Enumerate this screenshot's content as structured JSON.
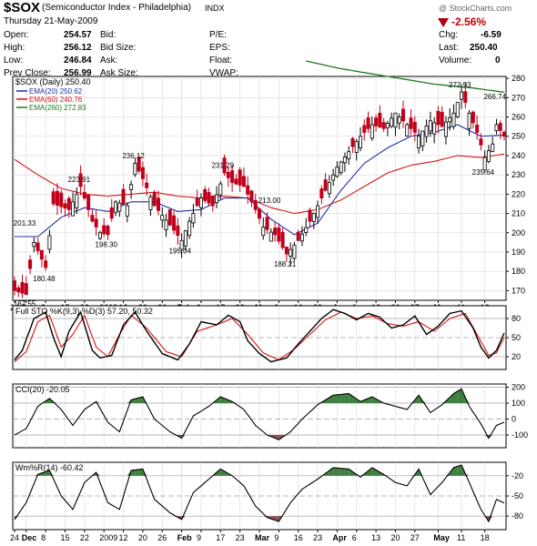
{
  "header": {
    "symbol": "$SOX",
    "name": "(Semiconductor Index - Philadelphia)",
    "exchange": "INDX",
    "date": "Thursday  21-May-2009",
    "watermark": "@ StockCharts.com",
    "quote_left": [
      {
        "label": "Open:",
        "value": "254.57"
      },
      {
        "label": "High:",
        "value": "256.12"
      },
      {
        "label": "Low:",
        "value": "246.84"
      },
      {
        "label": "Prev Close:",
        "value": "256.99"
      }
    ],
    "quote_mid": [
      "Bid:",
      "Bid Size:",
      "Ask:",
      "Ask Size:"
    ],
    "quote_mid2": [
      "P/E:",
      "EPS:",
      "Float:",
      "VWAP:"
    ],
    "change_pct": "-2.56%",
    "quote_right": [
      {
        "label": "Chg:",
        "value": "-6.59"
      },
      {
        "label": "Last:",
        "value": "250.40"
      },
      {
        "label": "Volume:",
        "value": "0"
      }
    ]
  },
  "chart_data": [
    {
      "type": "candlestick",
      "title": "$SOX (Daily) 250.40",
      "ylim": [
        165,
        281
      ],
      "yticks": [
        170,
        180,
        190,
        200,
        210,
        220,
        230,
        240,
        250,
        260,
        270,
        280
      ],
      "xlabels": [
        "24",
        "Dec",
        "8",
        "15",
        "22",
        "2009",
        "12",
        "20",
        "26",
        "Feb",
        "9",
        "17",
        "23",
        "Mar",
        "9",
        "16",
        "23",
        "Apr",
        "6",
        "13",
        "20",
        "27",
        "May",
        "11",
        "18"
      ],
      "legend": [
        {
          "name": "EMA(20) 250.62",
          "color": "#1c2fa8"
        },
        {
          "name": "EMA(60) 240.76",
          "color": "#d81414"
        },
        {
          "name": "EMA(260) 272.83",
          "color": "#1d7a1d"
        }
      ],
      "annotations": [
        {
          "label": "167.55",
          "x": 3,
          "y": 167.55
        },
        {
          "label": "180.48",
          "x": 8,
          "y": 180.48
        },
        {
          "label": "201.33",
          "x": 3,
          "y": 201.33
        },
        {
          "label": "223.91",
          "x": 17,
          "y": 223.91
        },
        {
          "label": "198.30",
          "x": 24,
          "y": 198.3
        },
        {
          "label": "236.12",
          "x": 31,
          "y": 236.12
        },
        {
          "label": "195.04",
          "x": 43,
          "y": 195.04
        },
        {
          "label": "231.29",
          "x": 54,
          "y": 231.29
        },
        {
          "label": "213.00",
          "x": 66,
          "y": 213.0
        },
        {
          "label": "188.21",
          "x": 70,
          "y": 188.21
        },
        {
          "label": "272.93",
          "x": 115,
          "y": 272.93
        },
        {
          "label": "235.64",
          "x": 121,
          "y": 235.64
        },
        {
          "label": "266.74",
          "x": 124,
          "y": 266.74
        }
      ],
      "ohlc_anchors": [
        [
          0,
          170
        ],
        [
          3,
          168
        ],
        [
          5,
          195
        ],
        [
          8,
          182
        ],
        [
          10,
          215
        ],
        [
          14,
          212
        ],
        [
          17,
          224
        ],
        [
          20,
          206
        ],
        [
          22,
          200
        ],
        [
          24,
          199
        ],
        [
          26,
          216
        ],
        [
          29,
          214
        ],
        [
          31,
          236
        ],
        [
          33,
          228
        ],
        [
          36,
          214
        ],
        [
          40,
          204
        ],
        [
          43,
          196
        ],
        [
          45,
          206
        ],
        [
          48,
          218
        ],
        [
          51,
          214
        ],
        [
          54,
          231
        ],
        [
          56,
          226
        ],
        [
          59,
          224
        ],
        [
          62,
          212
        ],
        [
          64,
          203
        ],
        [
          67,
          199
        ],
        [
          70,
          189
        ],
        [
          73,
          196
        ],
        [
          76,
          206
        ],
        [
          80,
          222
        ],
        [
          83,
          234
        ],
        [
          86,
          242
        ],
        [
          89,
          250
        ],
        [
          92,
          256
        ],
        [
          95,
          254
        ],
        [
          98,
          262
        ],
        [
          101,
          256
        ],
        [
          104,
          250
        ],
        [
          107,
          258
        ],
        [
          110,
          255
        ],
        [
          113,
          262
        ],
        [
          115,
          273
        ],
        [
          117,
          262
        ],
        [
          119,
          252
        ],
        [
          121,
          239
        ],
        [
          123,
          246
        ],
        [
          124,
          256
        ],
        [
          126,
          250
        ]
      ],
      "ema20_anchors": [
        [
          0,
          198
        ],
        [
          6,
          198
        ],
        [
          12,
          208
        ],
        [
          18,
          213
        ],
        [
          24,
          211
        ],
        [
          30,
          216
        ],
        [
          36,
          216
        ],
        [
          42,
          211
        ],
        [
          48,
          212
        ],
        [
          54,
          218
        ],
        [
          60,
          218
        ],
        [
          66,
          207
        ],
        [
          72,
          199
        ],
        [
          78,
          205
        ],
        [
          84,
          222
        ],
        [
          90,
          236
        ],
        [
          96,
          244
        ],
        [
          102,
          250
        ],
        [
          108,
          252
        ],
        [
          114,
          256
        ],
        [
          120,
          250
        ],
        [
          126,
          250.6
        ]
      ],
      "ema60_anchors": [
        [
          0,
          238
        ],
        [
          6,
          230
        ],
        [
          12,
          223
        ],
        [
          18,
          220
        ],
        [
          24,
          219
        ],
        [
          30,
          220
        ],
        [
          36,
          221
        ],
        [
          42,
          219
        ],
        [
          48,
          218
        ],
        [
          54,
          219
        ],
        [
          60,
          218
        ],
        [
          66,
          213
        ],
        [
          72,
          210
        ],
        [
          78,
          212
        ],
        [
          84,
          217
        ],
        [
          90,
          224
        ],
        [
          96,
          231
        ],
        [
          102,
          235
        ],
        [
          108,
          237
        ],
        [
          114,
          240
        ],
        [
          120,
          239
        ],
        [
          126,
          240.8
        ]
      ],
      "ema260_anchors": [
        [
          75,
          289
        ],
        [
          84,
          285
        ],
        [
          96,
          281
        ],
        [
          108,
          277
        ],
        [
          118,
          275
        ],
        [
          126,
          272.8
        ]
      ]
    },
    {
      "type": "line",
      "title": "Full STO %K(9,3) %D(3) 57.20, 50.32",
      "ylim": [
        0,
        100
      ],
      "yticks": [
        20,
        50,
        80
      ],
      "series": [
        {
          "name": "%K",
          "color": "#000000",
          "anchors": [
            [
              0,
              15
            ],
            [
              2,
              30
            ],
            [
              5,
              80
            ],
            [
              8,
              90
            ],
            [
              10,
              50
            ],
            [
              12,
              20
            ],
            [
              14,
              60
            ],
            [
              17,
              90
            ],
            [
              20,
              30
            ],
            [
              22,
              18
            ],
            [
              25,
              22
            ],
            [
              28,
              70
            ],
            [
              31,
              90
            ],
            [
              34,
              60
            ],
            [
              38,
              25
            ],
            [
              42,
              15
            ],
            [
              45,
              40
            ],
            [
              48,
              75
            ],
            [
              52,
              70
            ],
            [
              55,
              85
            ],
            [
              58,
              75
            ],
            [
              60,
              45
            ],
            [
              63,
              25
            ],
            [
              66,
              12
            ],
            [
              70,
              18
            ],
            [
              73,
              40
            ],
            [
              76,
              60
            ],
            [
              79,
              80
            ],
            [
              82,
              94
            ],
            [
              85,
              88
            ],
            [
              88,
              78
            ],
            [
              91,
              88
            ],
            [
              94,
              82
            ],
            [
              97,
              65
            ],
            [
              100,
              70
            ],
            [
              103,
              84
            ],
            [
              106,
              55
            ],
            [
              109,
              68
            ],
            [
              112,
              88
            ],
            [
              115,
              92
            ],
            [
              118,
              65
            ],
            [
              120,
              35
            ],
            [
              122,
              18
            ],
            [
              124,
              30
            ],
            [
              126,
              57.2
            ]
          ]
        },
        {
          "name": "%D",
          "color": "#d81414",
          "anchors": [
            [
              0,
              12
            ],
            [
              3,
              28
            ],
            [
              6,
              75
            ],
            [
              9,
              85
            ],
            [
              12,
              35
            ],
            [
              15,
              55
            ],
            [
              18,
              85
            ],
            [
              21,
              35
            ],
            [
              24,
              20
            ],
            [
              27,
              55
            ],
            [
              30,
              85
            ],
            [
              34,
              65
            ],
            [
              39,
              28
            ],
            [
              43,
              20
            ],
            [
              47,
              60
            ],
            [
              52,
              70
            ],
            [
              56,
              80
            ],
            [
              60,
              55
            ],
            [
              64,
              26
            ],
            [
              68,
              15
            ],
            [
              72,
              32
            ],
            [
              76,
              55
            ],
            [
              80,
              78
            ],
            [
              84,
              90
            ],
            [
              88,
              80
            ],
            [
              92,
              84
            ],
            [
              96,
              72
            ],
            [
              100,
              68
            ],
            [
              104,
              75
            ],
            [
              108,
              60
            ],
            [
              112,
              80
            ],
            [
              116,
              88
            ],
            [
              119,
              55
            ],
            [
              122,
              22
            ],
            [
              124,
              26
            ],
            [
              126,
              50.32
            ]
          ]
        }
      ]
    },
    {
      "type": "area",
      "title": "CCI(20) -20.05",
      "ylim": [
        -180,
        220
      ],
      "yticks": [
        -100,
        0,
        100,
        200
      ],
      "fill_color": "#3f7f3f",
      "neg_fill_color": "#8b5050",
      "anchors": [
        [
          0,
          -100
        ],
        [
          3,
          -60
        ],
        [
          6,
          80
        ],
        [
          9,
          130
        ],
        [
          12,
          60
        ],
        [
          15,
          -40
        ],
        [
          18,
          60
        ],
        [
          21,
          110
        ],
        [
          24,
          -20
        ],
        [
          27,
          -80
        ],
        [
          30,
          120
        ],
        [
          33,
          140
        ],
        [
          36,
          0
        ],
        [
          40,
          -80
        ],
        [
          43,
          -120
        ],
        [
          46,
          20
        ],
        [
          50,
          80
        ],
        [
          53,
          140
        ],
        [
          56,
          110
        ],
        [
          59,
          60
        ],
        [
          62,
          -40
        ],
        [
          65,
          -100
        ],
        [
          68,
          -130
        ],
        [
          71,
          -80
        ],
        [
          74,
          0
        ],
        [
          78,
          90
        ],
        [
          82,
          150
        ],
        [
          86,
          160
        ],
        [
          89,
          110
        ],
        [
          92,
          140
        ],
        [
          95,
          100
        ],
        [
          98,
          80
        ],
        [
          101,
          60
        ],
        [
          104,
          150
        ],
        [
          107,
          40
        ],
        [
          110,
          90
        ],
        [
          113,
          160
        ],
        [
          115,
          190
        ],
        [
          117,
          80
        ],
        [
          120,
          -30
        ],
        [
          122,
          -120
        ],
        [
          124,
          -40
        ],
        [
          126,
          -20.05
        ]
      ]
    },
    {
      "type": "area",
      "title": "Wm%R(14) -60.42",
      "ylim": [
        -100,
        0
      ],
      "yticks": [
        -80,
        -50,
        -20
      ],
      "fill_color": "#3f7f3f",
      "neg_fill_color": "#8b5050",
      "anchors": [
        [
          0,
          -85
        ],
        [
          3,
          -60
        ],
        [
          6,
          -18
        ],
        [
          9,
          -12
        ],
        [
          12,
          -50
        ],
        [
          15,
          -70
        ],
        [
          18,
          -30
        ],
        [
          21,
          -15
        ],
        [
          24,
          -60
        ],
        [
          27,
          -70
        ],
        [
          30,
          -12
        ],
        [
          33,
          -10
        ],
        [
          36,
          -55
        ],
        [
          40,
          -75
        ],
        [
          43,
          -85
        ],
        [
          46,
          -45
        ],
        [
          50,
          -25
        ],
        [
          53,
          -10
        ],
        [
          56,
          -20
        ],
        [
          59,
          -35
        ],
        [
          62,
          -65
        ],
        [
          65,
          -82
        ],
        [
          68,
          -88
        ],
        [
          71,
          -60
        ],
        [
          74,
          -40
        ],
        [
          78,
          -25
        ],
        [
          82,
          -8
        ],
        [
          86,
          -10
        ],
        [
          89,
          -22
        ],
        [
          92,
          -8
        ],
        [
          95,
          -18
        ],
        [
          98,
          -30
        ],
        [
          101,
          -35
        ],
        [
          104,
          -10
        ],
        [
          107,
          -48
        ],
        [
          110,
          -30
        ],
        [
          113,
          -8
        ],
        [
          115,
          -4
        ],
        [
          117,
          -30
        ],
        [
          120,
          -70
        ],
        [
          122,
          -88
        ],
        [
          124,
          -55
        ],
        [
          126,
          -60.42
        ]
      ]
    }
  ]
}
